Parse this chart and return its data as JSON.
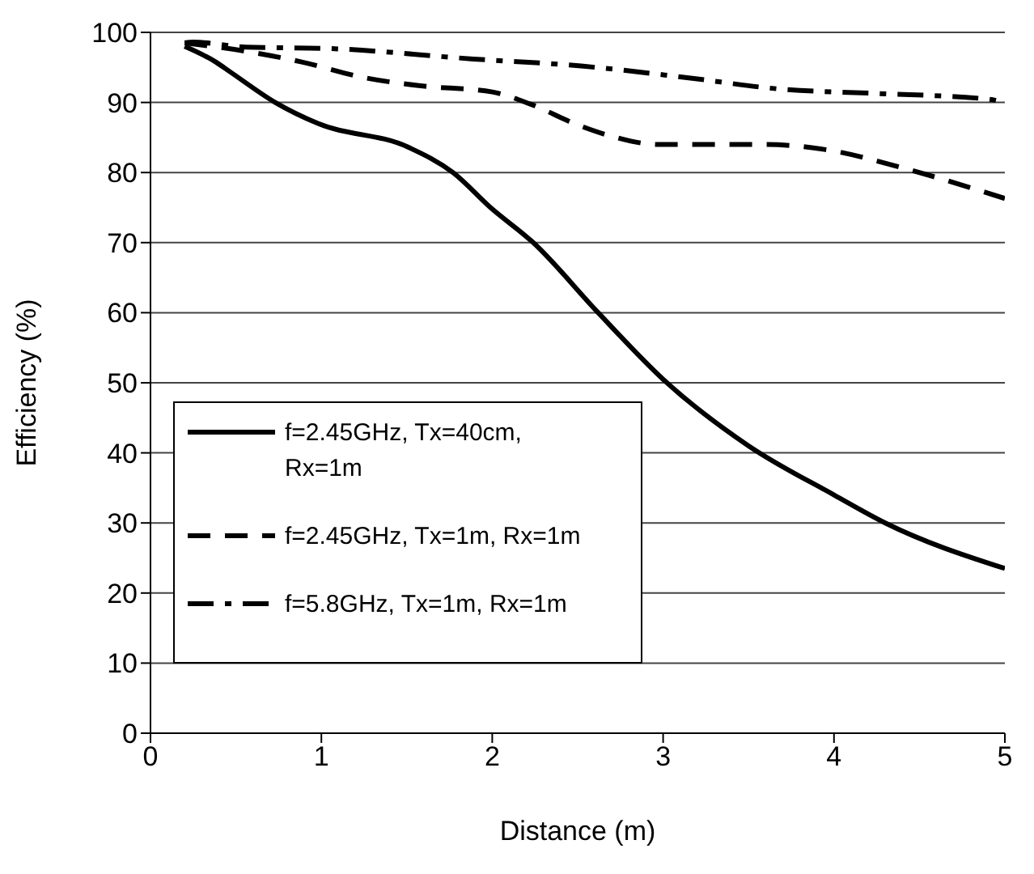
{
  "chart_data": {
    "type": "line",
    "xlabel": "Distance (m)",
    "ylabel": "Efficiency (%)",
    "xlim": [
      0,
      5
    ],
    "xticks": [
      0,
      1,
      2,
      3,
      4,
      5
    ],
    "ylim": [
      0,
      100
    ],
    "yticks": [
      0,
      10,
      20,
      30,
      40,
      50,
      60,
      70,
      80,
      90,
      100
    ],
    "grid": "y",
    "legend": "bottom left",
    "marker": "none",
    "series": [
      {
        "name": "f=2.45GHz, Tx=40cm, Rx=1m",
        "color": "#000000",
        "line_style": "solid",
        "x": [
          0.2,
          0.38,
          0.47,
          0.73,
          0.98,
          1.51,
          1.77,
          1.99,
          2.24,
          2.62,
          3.0,
          3.5,
          4.0,
          4.3,
          5.0
        ],
        "values": [
          98,
          95.8,
          94.3,
          90,
          87,
          83.6,
          80,
          75,
          70,
          60,
          50.5,
          41,
          34,
          30,
          23.5
        ]
      },
      {
        "name": "f=2.45GHz, Tx=1m, Rx=1m",
        "color": "#000000",
        "line_style": "dashed",
        "x": [
          0.2,
          0.56,
          0.88,
          1.26,
          1.57,
          2.0,
          2.22,
          2.5,
          2.71,
          2.97,
          3.6,
          3.97,
          4.38,
          5.0
        ],
        "values": [
          98.5,
          97.3,
          95.8,
          93.5,
          92.4,
          91.5,
          89.8,
          86.8,
          85.1,
          84,
          84,
          83.2,
          80.8,
          76.3
        ]
      },
      {
        "name": "f=5.8GHz, Tx=1m, Rx=1m",
        "color": "#000000",
        "line_style": "dashdot",
        "x": [
          0.2,
          0.25,
          0.56,
          1.04,
          1.89,
          2.52,
          3.12,
          3.69,
          4.23,
          4.89,
          5.0
        ],
        "values": [
          98.5,
          98.6,
          97.9,
          97.7,
          96.2,
          95.2,
          93.6,
          91.9,
          91.3,
          90.5,
          90
        ]
      }
    ]
  }
}
